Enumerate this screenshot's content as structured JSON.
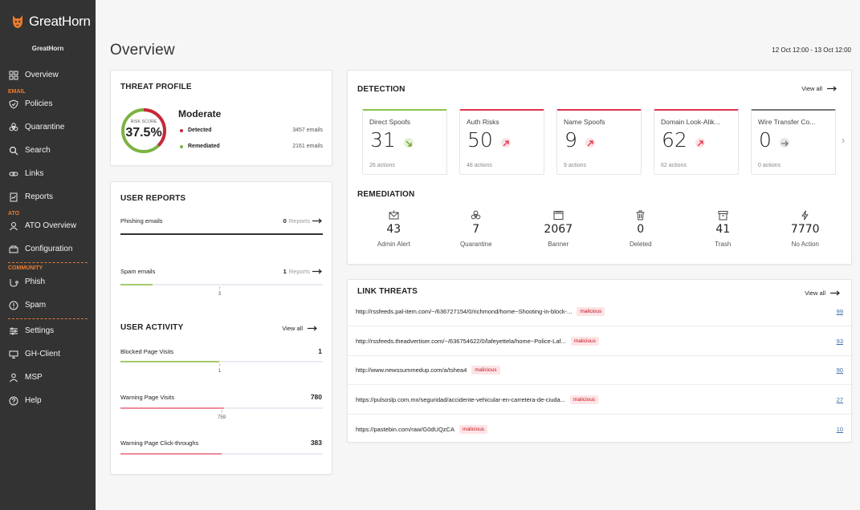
{
  "brand": {
    "name": "GreatHorn",
    "org": "GreatHorn",
    "accent": "#f07b2a"
  },
  "sidebar": {
    "items": [
      {
        "label": "Overview",
        "icon": "dashboard-icon",
        "section": ""
      },
      {
        "label": "Policies",
        "icon": "shield-icon",
        "section": "EMAIL"
      },
      {
        "label": "Quarantine",
        "icon": "biohazard-icon",
        "section": ""
      },
      {
        "label": "Search",
        "icon": "search-icon",
        "section": ""
      },
      {
        "label": "Links",
        "icon": "link-icon",
        "section": ""
      },
      {
        "label": "Reports",
        "icon": "report-icon",
        "section": ""
      },
      {
        "label": "ATO Overview",
        "icon": "ato-icon",
        "section": "ATO"
      },
      {
        "label": "Configuration",
        "icon": "config-icon",
        "section": ""
      },
      {
        "label": "Phish",
        "icon": "phish-icon",
        "section": "COMMUNITY"
      },
      {
        "label": "Spam",
        "icon": "alert-icon",
        "section": ""
      },
      {
        "label": "Settings",
        "icon": "settings-icon",
        "section": ""
      },
      {
        "label": "GH-Client",
        "icon": "client-icon",
        "section": ""
      },
      {
        "label": "MSP",
        "icon": "user-icon",
        "section": ""
      },
      {
        "label": "Help",
        "icon": "help-icon",
        "section": ""
      }
    ],
    "sections": {
      "email": "EMAIL",
      "ato": "ATO",
      "community": "COMMUNITY"
    }
  },
  "header": {
    "title": "Overview",
    "date_range": "12 Oct 12:00 - 13 Oct 12:00"
  },
  "threat_profile": {
    "title": "THREAT PROFILE",
    "risk_label": "RISK SCORE",
    "risk_score": "37.5%",
    "risk_fraction": 0.375,
    "level": "Moderate",
    "detected_label": "Detected",
    "detected_value": "3457 emails",
    "remediated_label": "Remediated",
    "remediated_value": "2161 emails",
    "colors": {
      "risk": "#c8283a",
      "safe": "#7cb342"
    }
  },
  "user_reports": {
    "title": "USER REPORTS",
    "rows": [
      {
        "label": "Phishing emails",
        "count": "0",
        "unit": "Reports",
        "fill": 1.0,
        "color": "#333333",
        "marker": ""
      },
      {
        "label": "Spam emails",
        "count": "1",
        "unit": "Reports",
        "fill": 0.16,
        "color": "#a5c96b",
        "marker": "3",
        "marker_pos": 0.49
      }
    ]
  },
  "user_activity": {
    "title": "USER ACTIVITY",
    "view_all": "View all",
    "rows": [
      {
        "label": "Blocked Page Visits",
        "value": "1",
        "fill": 0.49,
        "color": "#a5c96b",
        "marker": "1",
        "marker_pos": 0.49
      },
      {
        "label": "Warning Page Visits",
        "value": "780",
        "fill": 0.51,
        "color": "#f08a9a",
        "marker": "759",
        "marker_pos": 0.5
      },
      {
        "label": "Warning Page Click-throughs",
        "value": "383",
        "fill": 0.5,
        "color": "#f08a9a",
        "marker": ""
      }
    ]
  },
  "detection": {
    "title": "DETECTION",
    "view_all": "View all",
    "tiles": [
      {
        "name": "Direct Spoofs",
        "value": "31",
        "actions": "26 actions",
        "top_color": "#8bc34a",
        "trend": "down",
        "badge_bg": "#e3efd2",
        "badge_fg": "#6b9e2d"
      },
      {
        "name": "Auth Risks",
        "value": "50",
        "actions": "48 actions",
        "top_color": "#e0344d",
        "trend": "up",
        "badge_bg": "#fde2e5",
        "badge_fg": "#e0344d"
      },
      {
        "name": "Name Spoofs",
        "value": "9",
        "actions": "9 actions",
        "top_color": "#e0344d",
        "trend": "up",
        "badge_bg": "#fde2e5",
        "badge_fg": "#e0344d"
      },
      {
        "name": "Domain Look-Alik...",
        "value": "62",
        "actions": "62 actions",
        "top_color": "#e0344d",
        "trend": "up",
        "badge_bg": "#fde2e5",
        "badge_fg": "#e0344d"
      },
      {
        "name": "Wire Transfer Co...",
        "value": "0",
        "actions": "0 actions",
        "top_color": "#777777",
        "trend": "flat",
        "badge_bg": "#e6e6e6",
        "badge_fg": "#777777"
      }
    ]
  },
  "remediation": {
    "title": "REMEDIATION",
    "items": [
      {
        "label": "Admin Alert",
        "value": "43",
        "icon": "mail-alert-icon"
      },
      {
        "label": "Quarantine",
        "value": "7",
        "icon": "biohazard-icon"
      },
      {
        "label": "Banner",
        "value": "2067",
        "icon": "banner-icon"
      },
      {
        "label": "Deleted",
        "value": "0",
        "icon": "trash-icon"
      },
      {
        "label": "Trash",
        "value": "41",
        "icon": "archive-icon"
      },
      {
        "label": "No Action",
        "value": "7770",
        "icon": "bolt-icon"
      }
    ]
  },
  "link_threats": {
    "title": "LINK THREATS",
    "view_all": "View all",
    "rows": [
      {
        "url": "http://rssfeeds.pal-item.com/~/636727154/0/richmond/home~Shooting-in-block-...",
        "tag": "malicious",
        "count": "99"
      },
      {
        "url": "http://rssfeeds.theadvertiser.com/~/636754622/0/lafeyettela/home~Police-Laf...",
        "tag": "malicious",
        "count": "93"
      },
      {
        "url": "http://www.newssummedup.com/a/tshea4",
        "tag": "malicious",
        "count": "90"
      },
      {
        "url": "https://pulsoslp.com.mx/seguridad/accidente-vehicular-en-carretera-de-ciuda...",
        "tag": "malicious",
        "count": "27"
      },
      {
        "url": "https://pastebin.com/raw/G0dUQzCA",
        "tag": "malicious",
        "count": "10"
      }
    ]
  }
}
